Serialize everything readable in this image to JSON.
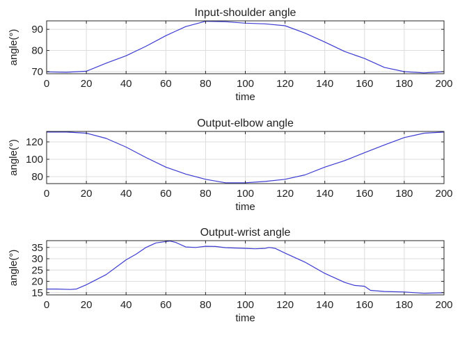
{
  "chart_data": [
    {
      "type": "line",
      "title": "Input-shoulder angle",
      "xlabel": "time",
      "ylabel": "angle(°)",
      "xlim": [
        0,
        200
      ],
      "ylim": [
        69,
        94
      ],
      "xticks": [
        0,
        20,
        40,
        60,
        80,
        100,
        120,
        140,
        160,
        180,
        200
      ],
      "yticks": [
        70,
        80,
        90
      ],
      "grid": true,
      "series": [
        {
          "color": "#3b3bd1",
          "points": [
            [
              0,
              69.9
            ],
            [
              10,
              69.7
            ],
            [
              20,
              70.2
            ],
            [
              30,
              74.0
            ],
            [
              40,
              77.5
            ],
            [
              50,
              82.0
            ],
            [
              60,
              87.0
            ],
            [
              70,
              91.3
            ],
            [
              80,
              93.8
            ],
            [
              90,
              93.6
            ],
            [
              100,
              92.9
            ],
            [
              110,
              92.6
            ],
            [
              120,
              91.7
            ],
            [
              130,
              88.2
            ],
            [
              140,
              84.0
            ],
            [
              150,
              79.5
            ],
            [
              160,
              76.2
            ],
            [
              170,
              72.0
            ],
            [
              180,
              70.0
            ],
            [
              190,
              69.4
            ],
            [
              200,
              70.0
            ]
          ]
        }
      ]
    },
    {
      "type": "line",
      "title": "Output-elbow angle",
      "xlabel": "time",
      "ylabel": "angle(°)",
      "xlim": [
        0,
        200
      ],
      "ylim": [
        72,
        132
      ],
      "xticks": [
        0,
        20,
        40,
        60,
        80,
        100,
        120,
        140,
        160,
        180,
        200
      ],
      "yticks": [
        80,
        100,
        120
      ],
      "grid": true,
      "series": [
        {
          "color": "#3b3bd1",
          "points": [
            [
              0,
              131.3
            ],
            [
              10,
              131.3
            ],
            [
              20,
              130.0
            ],
            [
              30,
              124.0
            ],
            [
              40,
              114.0
            ],
            [
              50,
              102.0
            ],
            [
              60,
              91.0
            ],
            [
              70,
              83.0
            ],
            [
              80,
              77.0
            ],
            [
              90,
              73.0
            ],
            [
              100,
              73.0
            ],
            [
              110,
              74.5
            ],
            [
              120,
              77.0
            ],
            [
              130,
              82.0
            ],
            [
              140,
              91.0
            ],
            [
              150,
              98.5
            ],
            [
              160,
              107.5
            ],
            [
              170,
              116.5
            ],
            [
              180,
              125.0
            ],
            [
              190,
              130.0
            ],
            [
              200,
              131.3
            ]
          ]
        }
      ]
    },
    {
      "type": "line",
      "title": "Output-wrist angle",
      "xlabel": "time",
      "ylabel": "angle(°)",
      "xlim": [
        0,
        200
      ],
      "ylim": [
        14,
        38
      ],
      "xticks": [
        0,
        20,
        40,
        60,
        80,
        100,
        120,
        140,
        160,
        180,
        200
      ],
      "yticks": [
        15,
        20,
        25,
        30,
        35
      ],
      "grid": true,
      "series": [
        {
          "color": "#3b3bd1",
          "points": [
            [
              0,
              16.6
            ],
            [
              5,
              16.6
            ],
            [
              12,
              16.4
            ],
            [
              15,
              16.6
            ],
            [
              20,
              18.5
            ],
            [
              30,
              23.0
            ],
            [
              40,
              29.5
            ],
            [
              45,
              32.0
            ],
            [
              50,
              35.0
            ],
            [
              55,
              37.0
            ],
            [
              60,
              37.6
            ],
            [
              62,
              37.8
            ],
            [
              65,
              37.2
            ],
            [
              70,
              35.2
            ],
            [
              75,
              35.0
            ],
            [
              80,
              35.5
            ],
            [
              85,
              35.4
            ],
            [
              90,
              34.9
            ],
            [
              100,
              34.6
            ],
            [
              105,
              34.4
            ],
            [
              110,
              34.6
            ],
            [
              112,
              35.0
            ],
            [
              115,
              34.6
            ],
            [
              120,
              32.5
            ],
            [
              130,
              28.5
            ],
            [
              140,
              23.5
            ],
            [
              150,
              19.5
            ],
            [
              155,
              18.2
            ],
            [
              160,
              17.8
            ],
            [
              163,
              16.0
            ],
            [
              170,
              15.5
            ],
            [
              180,
              15.3
            ],
            [
              190,
              14.7
            ],
            [
              200,
              15.0
            ]
          ]
        }
      ]
    }
  ]
}
